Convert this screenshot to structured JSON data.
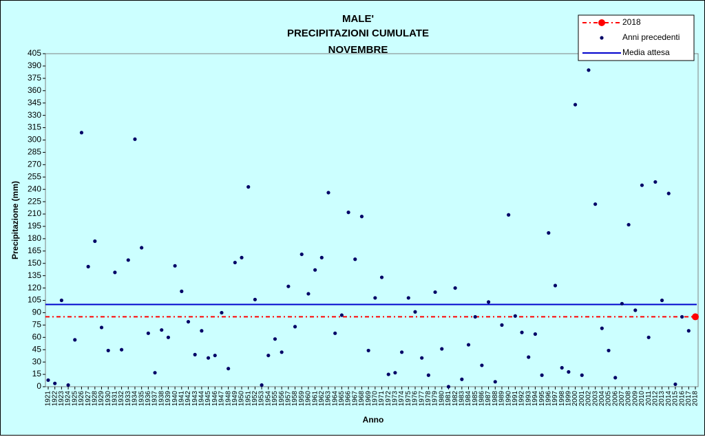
{
  "chart_data": {
    "type": "scatter",
    "title": [
      "MALE'",
      "PRECIPITAZIONI CUMULATE",
      "NOVEMBRE"
    ],
    "x_label": "Anno",
    "y_label": "Precipitazione (mm)",
    "xlim": [
      1921,
      2018
    ],
    "xticks": [
      1921,
      1922,
      1923,
      1924,
      1925,
      1926,
      1927,
      1928,
      1929,
      1930,
      1931,
      1932,
      1933,
      1934,
      1935,
      1936,
      1937,
      1938,
      1939,
      1940,
      1941,
      1942,
      1943,
      1944,
      1945,
      1946,
      1947,
      1948,
      1949,
      1950,
      1951,
      1952,
      1953,
      1954,
      1955,
      1956,
      1957,
      1958,
      1959,
      1960,
      1961,
      1962,
      1963,
      1964,
      1965,
      1966,
      1967,
      1968,
      1969,
      1970,
      1971,
      1972,
      1973,
      1974,
      1975,
      1976,
      1977,
      1978,
      1979,
      1980,
      1981,
      1982,
      1983,
      1984,
      1985,
      1986,
      1987,
      1988,
      1989,
      1990,
      1991,
      1992,
      1993,
      1994,
      1995,
      1996,
      1997,
      1998,
      1999,
      2000,
      2001,
      2002,
      2003,
      2004,
      2005,
      2006,
      2007,
      2008,
      2009,
      2010,
      2011,
      2012,
      2013,
      2014,
      2015,
      2016,
      2017,
      2018
    ],
    "ylim": [
      0,
      405
    ],
    "yticks": [
      0,
      15,
      30,
      45,
      60,
      75,
      90,
      105,
      120,
      135,
      150,
      165,
      180,
      195,
      210,
      225,
      240,
      255,
      270,
      285,
      300,
      315,
      330,
      345,
      360,
      375,
      390,
      405
    ],
    "grid": false,
    "legend": "top-right",
    "series": [
      {
        "name": "2018",
        "color": "#ff0000",
        "x": [
          2018
        ],
        "values": [
          85
        ]
      },
      {
        "name": "Anni precedenti",
        "color": "#000066",
        "x": [
          1921,
          1922,
          1923,
          1924,
          1925,
          1926,
          1927,
          1928,
          1929,
          1930,
          1931,
          1932,
          1933,
          1934,
          1935,
          1936,
          1937,
          1938,
          1939,
          1940,
          1941,
          1942,
          1943,
          1944,
          1945,
          1946,
          1947,
          1948,
          1949,
          1950,
          1951,
          1952,
          1953,
          1954,
          1955,
          1956,
          1957,
          1958,
          1959,
          1960,
          1961,
          1962,
          1963,
          1964,
          1965,
          1966,
          1967,
          1968,
          1969,
          1970,
          1971,
          1972,
          1973,
          1974,
          1975,
          1976,
          1977,
          1978,
          1979,
          1980,
          1981,
          1982,
          1983,
          1984,
          1985,
          1986,
          1987,
          1988,
          1989,
          1990,
          1991,
          1992,
          1993,
          1994,
          1995,
          1996,
          1997,
          1998,
          1999,
          2000,
          2001,
          2002,
          2003,
          2004,
          2005,
          2006,
          2007,
          2008,
          2009,
          2010,
          2011,
          2012,
          2013,
          2014,
          2015,
          2016,
          2017
        ],
        "values": [
          8,
          4,
          105,
          2,
          57,
          309,
          146,
          177,
          72,
          44,
          139,
          45,
          154,
          301,
          169,
          65,
          17,
          69,
          60,
          147,
          116,
          79,
          39,
          68,
          35,
          38,
          90,
          22,
          151,
          157,
          243,
          106,
          2,
          38,
          58,
          42,
          122,
          73,
          161,
          113,
          142,
          157,
          236,
          65,
          87,
          212,
          155,
          207,
          44,
          108,
          133,
          15,
          17,
          42,
          108,
          91,
          35,
          14,
          115,
          46,
          0,
          120,
          9,
          51,
          85,
          26,
          103,
          6,
          75,
          209,
          86,
          66,
          36,
          64,
          14,
          187,
          123,
          23,
          18,
          343,
          14,
          385,
          222,
          71,
          44,
          11,
          101,
          197,
          93,
          245,
          60,
          249,
          105,
          235,
          3,
          85,
          68
        ]
      },
      {
        "name": "Media attesa",
        "color": "#0000cc",
        "values": [
          100
        ]
      }
    ]
  }
}
